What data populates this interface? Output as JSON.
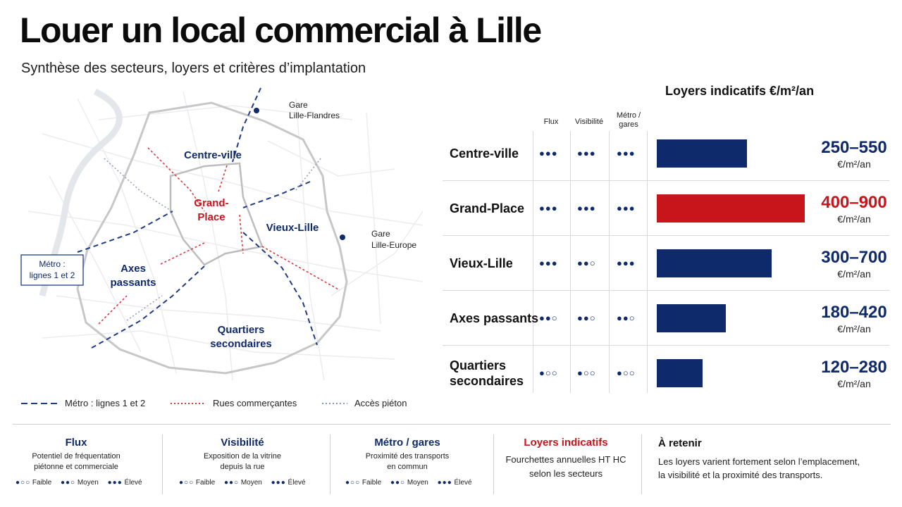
{
  "title": "Louer un local commercial à Lille",
  "subtitle": "Synthèse des secteurs, loyers et critères d’implantation",
  "map": {
    "areas": {
      "centre_ville": "Centre-ville",
      "grand_place_1": "Grand-",
      "grand_place_2": "Place",
      "vieux_lille": "Vieux-Lille",
      "axes_1": "Axes",
      "axes_2": "passants",
      "quartiers_1": "Quartiers",
      "quartiers_2": "secondaires"
    },
    "stations": {
      "flandres_1": "Gare",
      "flandres_2": "Lille-Flandres",
      "europe_1": "Gare",
      "europe_2": "Lille-Europe"
    },
    "metro_box_1": "Métro :",
    "metro_box_2": "lignes 1 et 2"
  },
  "legend": {
    "metro": "Métro : lignes 1 et 2",
    "streets": "Rues commerçantes",
    "pedestrian": "Accès piéton"
  },
  "colors": {
    "navy": "#0f2a6b",
    "red": "#c8141b",
    "grey": "#9a9a9a"
  },
  "chart_data": {
    "type": "bar",
    "title": "Loyers indicatifs €/m²/an",
    "criteria_headers": [
      "Flux",
      "Visibilité",
      "Métro / gares"
    ],
    "criteria_headers_lines": [
      [
        "Flux"
      ],
      [
        "Visibilité"
      ],
      [
        "Métro /",
        "gares"
      ]
    ],
    "unit": "€/m²/an",
    "rows": [
      {
        "label": "Centre-ville",
        "label_lines": [
          "Centre-ville"
        ],
        "ratings": [
          3,
          3,
          3
        ],
        "min": 250,
        "max": 550,
        "range_label": "250–550",
        "highlight": false
      },
      {
        "label": "Grand-Place",
        "label_lines": [
          "Grand-Place"
        ],
        "ratings": [
          3,
          3,
          3
        ],
        "min": 400,
        "max": 900,
        "range_label": "400–900",
        "highlight": true
      },
      {
        "label": "Vieux-Lille",
        "label_lines": [
          "Vieux-Lille"
        ],
        "ratings": [
          3,
          2,
          3
        ],
        "min": 300,
        "max": 700,
        "range_label": "300–700",
        "highlight": false
      },
      {
        "label": "Axes passants",
        "label_lines": [
          "Axes passants"
        ],
        "ratings": [
          2,
          2,
          2
        ],
        "min": 180,
        "max": 420,
        "range_label": "180–420",
        "highlight": false
      },
      {
        "label": "Quartiers secondaires",
        "label_lines": [
          "Quartiers",
          "secondaires"
        ],
        "ratings": [
          1,
          1,
          1
        ],
        "min": 120,
        "max": 280,
        "range_label": "120–280",
        "highlight": false
      }
    ]
  },
  "footer": {
    "flux": {
      "title": "Flux",
      "line1": "Potentiel de fréquentation",
      "line2": "piétonne et commerciale"
    },
    "visibilite": {
      "title": "Visibilité",
      "line1": "Exposition de la vitrine",
      "line2": "depuis la rue"
    },
    "metro": {
      "title": "Métro / gares",
      "line1": "Proximité des transports",
      "line2": "en commun"
    },
    "scale": {
      "low": "Faible",
      "mid": "Moyen",
      "high": "Élevé"
    },
    "loyers": {
      "title": "Loyers indicatifs",
      "line1": "Fourchettes annuelles HT HC",
      "line2": "selon les secteurs"
    },
    "retenir": {
      "title": "À retenir",
      "line1": "Les loyers varient fortement selon l’emplacement,",
      "line2": "la visibilité et la proximité des transports."
    }
  }
}
